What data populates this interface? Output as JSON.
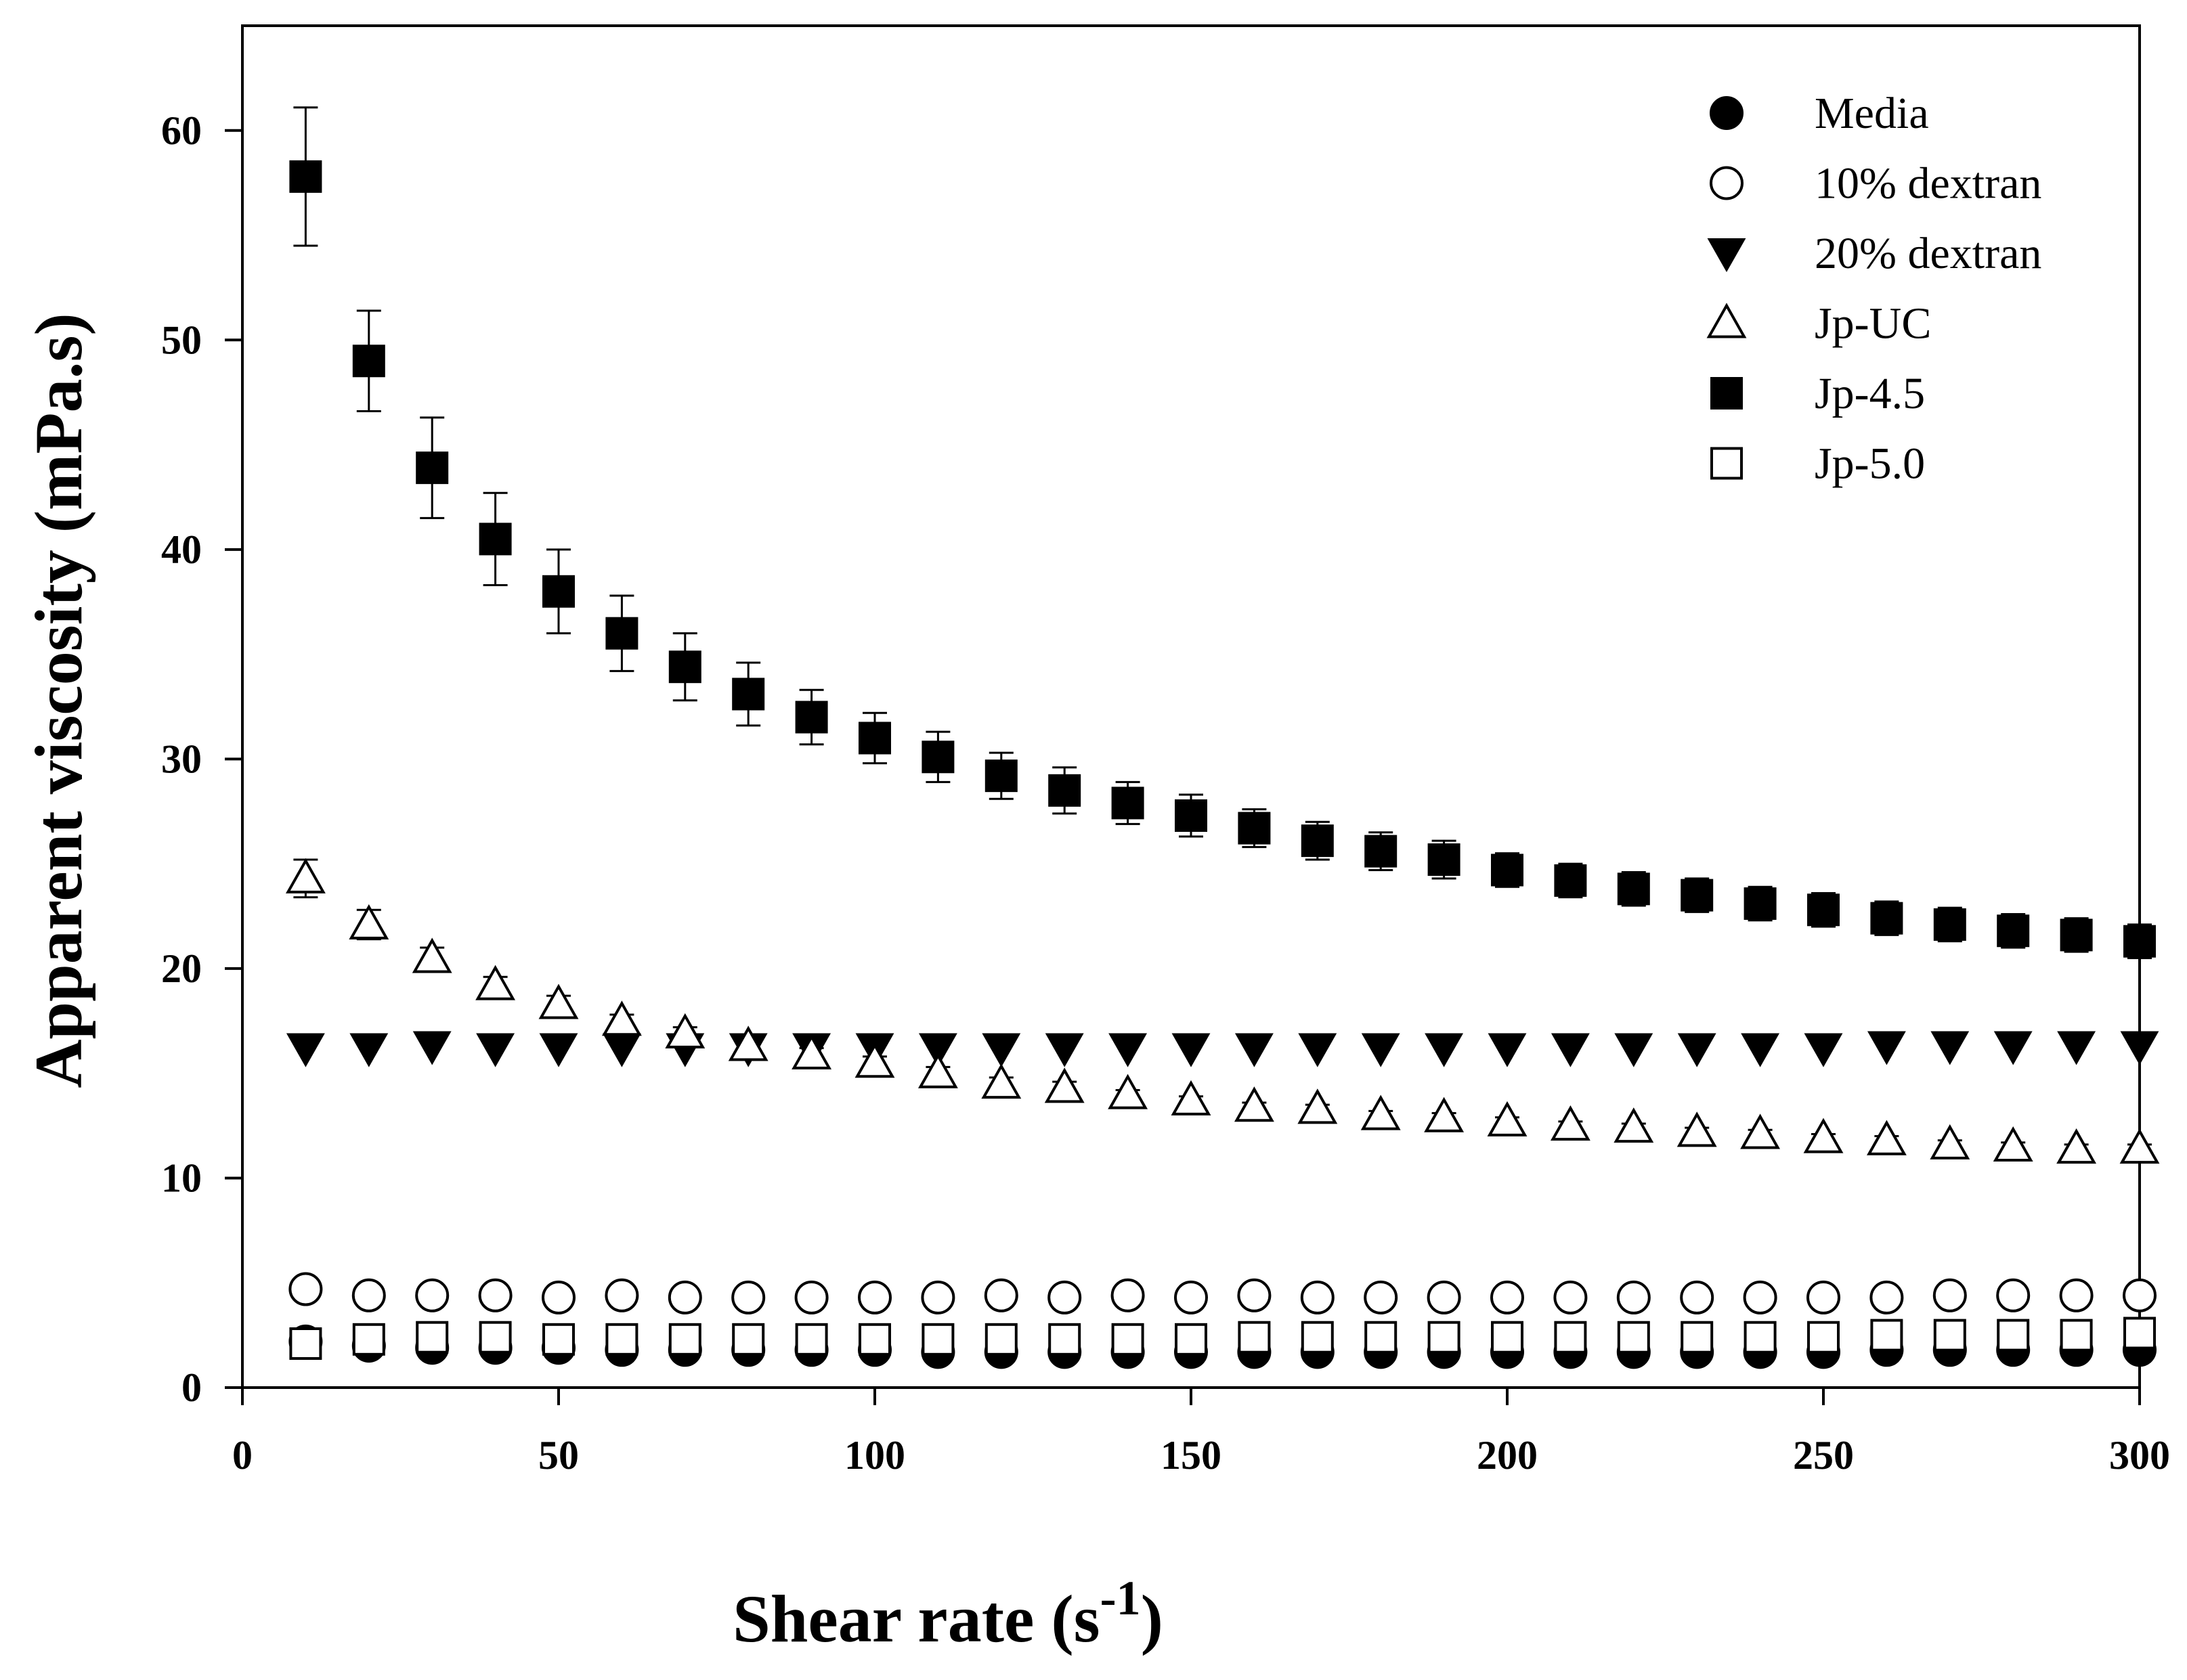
{
  "chart_data": {
    "type": "scatter",
    "title": "",
    "xlabel": "Shear rate (s",
    "xlabel_superscript": "-1",
    "xlabel_close": ")",
    "ylabel": "Apparent viscosity (mPa.s)",
    "xlim": [
      0,
      300
    ],
    "ylim": [
      0,
      65
    ],
    "grid": false,
    "legend_position": "top-right",
    "x_ticks": [
      0,
      50,
      100,
      150,
      200,
      250,
      300
    ],
    "y_ticks": [
      0,
      10,
      20,
      30,
      40,
      50,
      60
    ],
    "x": [
      10,
      20,
      30,
      40,
      50,
      60,
      70,
      80,
      90,
      100,
      110,
      120,
      130,
      140,
      150,
      160,
      170,
      180,
      190,
      200,
      210,
      220,
      230,
      240,
      250,
      260,
      270,
      280,
      290,
      300
    ],
    "series": [
      {
        "name": "Media",
        "marker": "filled-circle",
        "values": [
          2.2,
          2.0,
          1.9,
          1.9,
          1.9,
          1.8,
          1.8,
          1.8,
          1.8,
          1.8,
          1.7,
          1.7,
          1.7,
          1.7,
          1.7,
          1.7,
          1.7,
          1.7,
          1.7,
          1.7,
          1.7,
          1.7,
          1.7,
          1.7,
          1.7,
          1.8,
          1.8,
          1.8,
          1.8,
          1.8
        ]
      },
      {
        "name": "10% dextran",
        "marker": "open-circle",
        "values": [
          4.7,
          4.4,
          4.4,
          4.4,
          4.3,
          4.4,
          4.3,
          4.3,
          4.3,
          4.3,
          4.3,
          4.4,
          4.3,
          4.4,
          4.3,
          4.4,
          4.3,
          4.3,
          4.3,
          4.3,
          4.3,
          4.3,
          4.3,
          4.3,
          4.3,
          4.3,
          4.4,
          4.4,
          4.4,
          4.4
        ]
      },
      {
        "name": "20% dextran",
        "marker": "filled-triangle-down",
        "values": [
          16.2,
          16.2,
          16.3,
          16.2,
          16.2,
          16.2,
          16.2,
          16.2,
          16.2,
          16.2,
          16.2,
          16.2,
          16.2,
          16.2,
          16.2,
          16.2,
          16.2,
          16.2,
          16.2,
          16.2,
          16.2,
          16.2,
          16.2,
          16.2,
          16.2,
          16.3,
          16.3,
          16.3,
          16.3,
          16.3
        ]
      },
      {
        "name": "Jp-UC",
        "marker": "open-triangle-up",
        "values": [
          24.3,
          22.1,
          20.5,
          19.2,
          18.3,
          17.5,
          16.9,
          16.3,
          15.9,
          15.5,
          15.0,
          14.5,
          14.3,
          14.0,
          13.7,
          13.4,
          13.3,
          13.0,
          12.9,
          12.7,
          12.5,
          12.4,
          12.2,
          12.1,
          11.9,
          11.8,
          11.6,
          11.5,
          11.4,
          11.4
        ],
        "errors": [
          0.9,
          0.7,
          0.5,
          0.4,
          0.4,
          0.3,
          0.3,
          0.3,
          0.3,
          0.3,
          0.3,
          0.3,
          0.3,
          0.2,
          0.2,
          0.2,
          0.2,
          0.2,
          0.2,
          0.2,
          0.2,
          0.2,
          0.2,
          0.2,
          0.2,
          0.2,
          0.2,
          0.2,
          0.2,
          0.2
        ]
      },
      {
        "name": "Jp-4.5",
        "marker": "filled-square",
        "values": [
          57.8,
          49.0,
          43.9,
          40.5,
          38.0,
          36.0,
          34.4,
          33.1,
          32.0,
          31.0,
          30.1,
          29.2,
          28.5,
          27.9,
          27.3,
          26.7,
          26.1,
          25.6,
          25.2,
          24.7,
          24.2,
          23.8,
          23.5,
          23.1,
          22.8,
          22.4,
          22.1,
          21.8,
          21.6,
          21.3
        ],
        "errors": [
          3.3,
          2.4,
          2.4,
          2.2,
          2.0,
          1.8,
          1.6,
          1.5,
          1.3,
          1.2,
          1.2,
          1.1,
          1.1,
          1.0,
          1.0,
          0.9,
          0.9,
          0.9,
          0.9,
          0.8,
          0.8,
          0.8,
          0.8,
          0.8,
          0.8,
          0.8,
          0.8,
          0.8,
          0.8,
          0.8
        ]
      },
      {
        "name": "Jp-5.0",
        "marker": "open-square",
        "values": [
          2.1,
          2.3,
          2.4,
          2.4,
          2.3,
          2.3,
          2.3,
          2.3,
          2.3,
          2.3,
          2.3,
          2.3,
          2.3,
          2.3,
          2.3,
          2.4,
          2.4,
          2.4,
          2.4,
          2.4,
          2.4,
          2.4,
          2.4,
          2.4,
          2.4,
          2.5,
          2.5,
          2.5,
          2.5,
          2.6
        ]
      }
    ]
  }
}
